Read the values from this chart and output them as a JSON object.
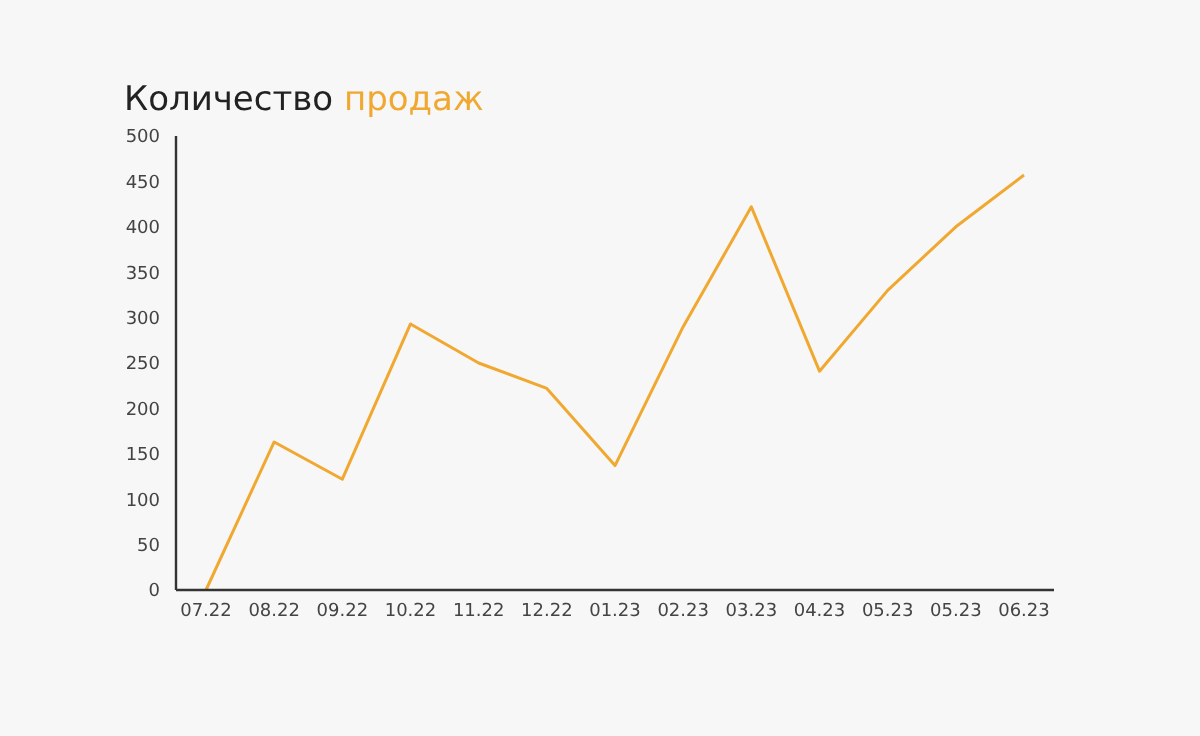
{
  "chart_data": {
    "type": "line",
    "title": "Количество продаж",
    "categories": [
      "07.22",
      "08.22",
      "09.22",
      "10.22",
      "11.22",
      "12.22",
      "01.23",
      "02.23",
      "03.23",
      "04.23",
      "05.23",
      "05.23",
      "06.23"
    ],
    "series": [
      {
        "color": "#f0a830",
        "values": [
          0,
          163,
          122,
          293,
          250,
          222,
          137,
          290,
          422,
          241,
          330,
          400,
          457
        ]
      }
    ],
    "ylim": [
      0,
      500
    ],
    "yticks": [
      0,
      50,
      100,
      150,
      200,
      250,
      300,
      350,
      400,
      450,
      500
    ],
    "grid": false,
    "marker": "none",
    "line_style": "solid"
  }
}
